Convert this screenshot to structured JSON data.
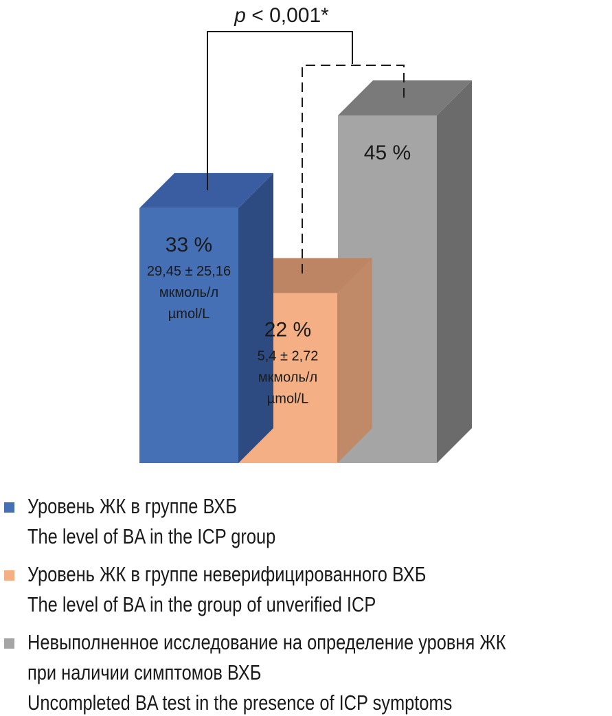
{
  "chart_data": {
    "type": "bar",
    "title": "",
    "significance": {
      "label": "p < 0,001*",
      "p_symbol": "p",
      "p_rest": " < 0,001*"
    },
    "series": [
      {
        "name": "Уровень ЖК в группе ВХБ / The level of BA in the ICP group",
        "value": 33,
        "percent_label": "33 %",
        "detail_lines": [
          "29,45 ± 25,16",
          "мкмоль/л",
          "µmol/L"
        ]
      },
      {
        "name": "Уровень ЖК в группе неверифицированного ВХБ / The level of BA in the group of unverified ICP",
        "value": 22,
        "percent_label": "22 %",
        "detail_lines": [
          "5,4 ± 2,72",
          "мкмоль/л",
          "µmol/L"
        ]
      },
      {
        "name": "Невыполненное исследование на определение уровня ЖК при наличии симптомов ВХБ / Uncompleted BA test in the presence of ICP symptoms",
        "value": 45,
        "percent_label": "45 %",
        "detail_lines": []
      }
    ],
    "ylim": [
      0,
      45
    ],
    "colors": {
      "blue": {
        "front": "#4570b6",
        "side": "#2d4b81",
        "top": "#3a5da1"
      },
      "orange": {
        "front": "#f4b084",
        "side": "#c08a68",
        "top": "#bd8563"
      },
      "gray": {
        "front": "#a5a5a5",
        "side": "#6b6b6b",
        "top": "#7a7a7a"
      }
    },
    "legend_position": "bottom"
  },
  "legend": {
    "items": [
      {
        "color": "#4570b6",
        "lines": [
          "Уровень ЖК в группе ВХБ",
          "The level of BA in the ICP group"
        ]
      },
      {
        "color": "#f4b084",
        "lines": [
          "Уровень ЖК в группе неверифицированного ВХБ",
          "The level of BA in the group of unverified ICP"
        ]
      },
      {
        "color": "#a5a5a5",
        "lines": [
          "Невыполненное исследование на определение уровня ЖК",
          "при наличии симптомов ВХБ",
          "Uncompleted BA test in the presence of ICP symptoms"
        ]
      }
    ]
  }
}
